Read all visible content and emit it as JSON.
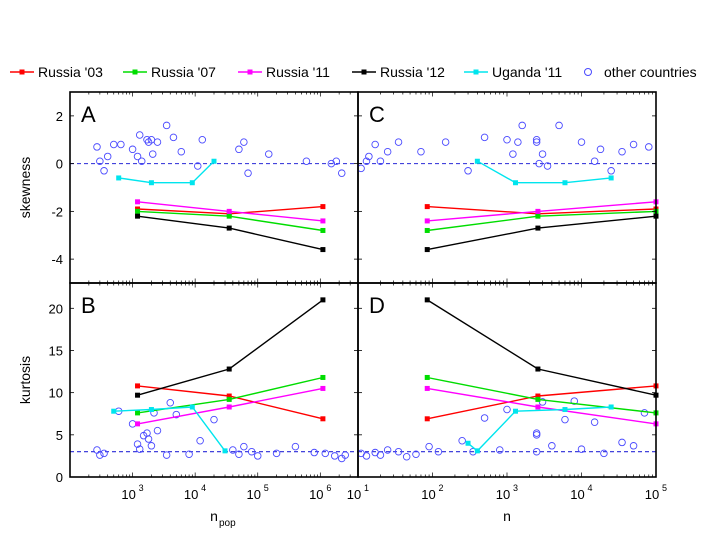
{
  "legend": [
    {
      "label": "Russia '03",
      "color": "#ff0000",
      "kind": "line"
    },
    {
      "label": "Russia '07",
      "color": "#00dd00",
      "kind": "line"
    },
    {
      "label": "Russia '11",
      "color": "#ff00ff",
      "kind": "line"
    },
    {
      "label": "Russia '12",
      "color": "#000000",
      "kind": "line"
    },
    {
      "label": "Uganda '11",
      "color": "#00e5ee",
      "kind": "line"
    },
    {
      "label": "other countries",
      "color": "#4a4aff",
      "kind": "circle"
    }
  ],
  "chart_data": [
    {
      "panel": "A",
      "type": "line",
      "xscale": "log",
      "xlim": [
        100,
        4000000
      ],
      "ylim": [
        -5,
        3
      ],
      "yticks": [
        -4,
        -2,
        0,
        2
      ],
      "ytick_labels": [
        "-4",
        "-2",
        "0",
        "2"
      ],
      "xticks": [
        1000,
        10000,
        100000,
        1000000
      ],
      "xtick_labels": [
        {
          "base": "10",
          "exp": "3"
        },
        {
          "base": "10",
          "exp": "4"
        },
        {
          "base": "10",
          "exp": "5"
        },
        {
          "base": "10",
          "exp": "6"
        }
      ],
      "ylabel": "skewness",
      "xlabel": "",
      "reference_y": 0,
      "series": [
        {
          "name": "Russia '03",
          "color": "#ff0000",
          "x": [
            1200,
            35000,
            1100000
          ],
          "y": [
            -1.9,
            -2.1,
            -1.8
          ]
        },
        {
          "name": "Russia '07",
          "color": "#00dd00",
          "x": [
            1200,
            35000,
            1100000
          ],
          "y": [
            -2.0,
            -2.2,
            -2.8
          ]
        },
        {
          "name": "Russia '11",
          "color": "#ff00ff",
          "x": [
            1200,
            35000,
            1100000
          ],
          "y": [
            -1.6,
            -2.0,
            -2.4
          ]
        },
        {
          "name": "Russia '12",
          "color": "#000000",
          "x": [
            1200,
            35000,
            1100000
          ],
          "y": [
            -2.2,
            -2.7,
            -3.6
          ]
        },
        {
          "name": "Uganda '11",
          "color": "#00e5ee",
          "x": [
            600,
            2000,
            9000,
            20000
          ],
          "y": [
            -0.6,
            -0.8,
            -0.8,
            0.1
          ]
        }
      ],
      "scatter": {
        "name": "other countries",
        "color": "#4a4aff",
        "x": [
          270,
          300,
          350,
          400,
          500,
          650,
          1000,
          1200,
          1300,
          1400,
          1700,
          1800,
          2000,
          2100,
          2500,
          3500,
          4500,
          6000,
          11000,
          13000,
          50000,
          60000,
          70000,
          150000,
          600000,
          1500000,
          1800000,
          2200000
        ],
        "y": [
          0.7,
          0.1,
          -0.3,
          0.3,
          0.8,
          0.8,
          0.6,
          0.3,
          1.2,
          0.1,
          1.0,
          0.9,
          1.0,
          0.4,
          0.9,
          1.6,
          1.1,
          0.5,
          -0.1,
          1.0,
          0.6,
          0.9,
          -0.4,
          0.4,
          0.1,
          0.0,
          0.1,
          -0.4
        ]
      }
    },
    {
      "panel": "B",
      "type": "line",
      "xscale": "log",
      "xlim": [
        100,
        4000000
      ],
      "ylim": [
        0,
        23
      ],
      "yticks": [
        0,
        5,
        10,
        15,
        20
      ],
      "ytick_labels": [
        "0",
        "5",
        "10",
        "15",
        "20"
      ],
      "xticks": [
        1000,
        10000,
        100000,
        1000000
      ],
      "xtick_labels": [
        {
          "base": "10",
          "exp": "3"
        },
        {
          "base": "10",
          "exp": "4"
        },
        {
          "base": "10",
          "exp": "5"
        },
        {
          "base": "10",
          "exp": "6"
        }
      ],
      "ylabel": "kurtosis",
      "xlabel": "n",
      "xlabel_sub": "pop",
      "reference_y": 3,
      "series": [
        {
          "name": "Russia '03",
          "color": "#ff0000",
          "x": [
            1200,
            35000,
            1100000
          ],
          "y": [
            10.8,
            9.6,
            6.9
          ]
        },
        {
          "name": "Russia '07",
          "color": "#00dd00",
          "x": [
            1200,
            35000,
            1100000
          ],
          "y": [
            7.6,
            9.2,
            11.8
          ]
        },
        {
          "name": "Russia '11",
          "color": "#ff00ff",
          "x": [
            1200,
            35000,
            1100000
          ],
          "y": [
            6.3,
            8.3,
            10.5
          ]
        },
        {
          "name": "Russia '12",
          "color": "#000000",
          "x": [
            1200,
            35000,
            1100000
          ],
          "y": [
            9.7,
            12.8,
            21.0
          ]
        },
        {
          "name": "Uganda '11",
          "color": "#00e5ee",
          "x": [
            500,
            2000,
            9000,
            30000
          ],
          "y": [
            7.8,
            8.0,
            8.3,
            3.1
          ]
        }
      ],
      "scatter": {
        "name": "other countries",
        "color": "#4a4aff",
        "x": [
          270,
          300,
          350,
          600,
          1000,
          1200,
          1300,
          1500,
          1700,
          1800,
          2000,
          2200,
          2500,
          3500,
          4000,
          5000,
          8000,
          12000,
          20000,
          40000,
          50000,
          60000,
          80000,
          100000,
          200000,
          400000,
          800000,
          1200000,
          1700000,
          2200000,
          2500000
        ],
        "y": [
          3.2,
          2.6,
          2.8,
          7.8,
          6.3,
          3.9,
          3.3,
          4.9,
          5.2,
          4.5,
          3.7,
          7.6,
          5.5,
          2.6,
          8.8,
          7.4,
          2.7,
          4.3,
          6.8,
          3.2,
          2.7,
          3.6,
          3.0,
          2.5,
          2.8,
          3.6,
          2.9,
          2.8,
          2.5,
          2.2,
          2.6
        ]
      }
    },
    {
      "panel": "C",
      "type": "line",
      "xscale": "log",
      "xlim": [
        10,
        100000
      ],
      "ylim": [
        -5,
        3
      ],
      "yticks": [
        -4,
        -2,
        0,
        2
      ],
      "ytick_labels": [
        "",
        "",
        "",
        ""
      ],
      "xticks": [
        10,
        100,
        1000,
        10000,
        100000
      ],
      "xtick_labels": [
        {
          "base": "10",
          "exp": "1"
        },
        {
          "base": "10",
          "exp": "2"
        },
        {
          "base": "10",
          "exp": "3"
        },
        {
          "base": "10",
          "exp": "4"
        },
        {
          "base": "10",
          "exp": "5"
        }
      ],
      "ylabel": "",
      "xlabel": "",
      "reference_y": 0,
      "series": [
        {
          "name": "Russia '03",
          "color": "#ff0000",
          "x": [
            85,
            2600,
            100000
          ],
          "y": [
            -1.8,
            -2.1,
            -1.9
          ]
        },
        {
          "name": "Russia '07",
          "color": "#00dd00",
          "x": [
            85,
            2600,
            100000
          ],
          "y": [
            -2.8,
            -2.2,
            -2.0
          ]
        },
        {
          "name": "Russia '11",
          "color": "#ff00ff",
          "x": [
            85,
            2600,
            100000
          ],
          "y": [
            -2.4,
            -2.0,
            -1.6
          ]
        },
        {
          "name": "Russia '12",
          "color": "#000000",
          "x": [
            85,
            2600,
            100000
          ],
          "y": [
            -3.6,
            -2.7,
            -2.2
          ]
        },
        {
          "name": "Uganda '11",
          "color": "#00e5ee",
          "x": [
            400,
            1300,
            6000,
            25000
          ],
          "y": [
            0.1,
            -0.8,
            -0.8,
            -0.6
          ]
        }
      ],
      "scatter": {
        "name": "other countries",
        "color": "#4a4aff",
        "x": [
          11,
          13,
          14,
          17,
          20,
          25,
          35,
          70,
          150,
          300,
          500,
          1000,
          1200,
          1400,
          1600,
          2500,
          2500,
          2700,
          3000,
          3500,
          5000,
          10000,
          15000,
          18000,
          25000,
          35000,
          50000,
          80000
        ],
        "y": [
          -0.2,
          0.1,
          0.3,
          0.8,
          0.1,
          0.5,
          0.9,
          0.5,
          0.9,
          -0.3,
          1.1,
          1.0,
          0.4,
          0.9,
          1.6,
          0.9,
          1.0,
          0.0,
          0.4,
          -0.1,
          1.6,
          0.9,
          0.1,
          0.6,
          -0.3,
          0.5,
          0.8,
          0.7
        ]
      }
    },
    {
      "panel": "D",
      "type": "line",
      "xscale": "log",
      "xlim": [
        10,
        100000
      ],
      "ylim": [
        0,
        23
      ],
      "yticks": [
        0,
        5,
        10,
        15,
        20
      ],
      "ytick_labels": [
        "",
        "",
        "",
        "",
        ""
      ],
      "xticks": [
        10,
        100,
        1000,
        10000,
        100000
      ],
      "xtick_labels": [
        {
          "base": "10",
          "exp": "1"
        },
        {
          "base": "10",
          "exp": "2"
        },
        {
          "base": "10",
          "exp": "3"
        },
        {
          "base": "10",
          "exp": "4"
        },
        {
          "base": "10",
          "exp": "5"
        }
      ],
      "ylabel": "",
      "xlabel": "n",
      "xlabel_sub": "",
      "reference_y": 3,
      "series": [
        {
          "name": "Russia '03",
          "color": "#ff0000",
          "x": [
            85,
            2600,
            100000
          ],
          "y": [
            6.9,
            9.6,
            10.8
          ]
        },
        {
          "name": "Russia '07",
          "color": "#00dd00",
          "x": [
            85,
            2600,
            100000
          ],
          "y": [
            11.8,
            9.2,
            7.6
          ]
        },
        {
          "name": "Russia '11",
          "color": "#ff00ff",
          "x": [
            85,
            2600,
            100000
          ],
          "y": [
            10.5,
            8.3,
            6.3
          ]
        },
        {
          "name": "Russia '12",
          "color": "#000000",
          "x": [
            85,
            2600,
            100000
          ],
          "y": [
            21.0,
            12.8,
            9.7
          ]
        },
        {
          "name": "Uganda '11",
          "color": "#00e5ee",
          "x": [
            300,
            400,
            1300,
            6000,
            25000
          ],
          "y": [
            4.0,
            3.1,
            7.8,
            8.0,
            8.3
          ]
        }
      ],
      "scatter": {
        "name": "other countries",
        "color": "#4a4aff",
        "x": [
          11,
          13,
          17,
          20,
          25,
          35,
          45,
          60,
          90,
          120,
          250,
          350,
          500,
          800,
          1000,
          2500,
          2500,
          2500,
          3000,
          4000,
          6000,
          8000,
          10000,
          15000,
          20000,
          35000,
          50000,
          70000
        ],
        "y": [
          2.8,
          2.5,
          2.9,
          2.6,
          3.2,
          3.0,
          2.4,
          2.7,
          3.6,
          3.0,
          4.3,
          3.0,
          7.0,
          3.2,
          8.0,
          5.0,
          5.2,
          3.0,
          8.9,
          3.7,
          6.8,
          9.0,
          3.3,
          6.5,
          2.8,
          4.1,
          3.7,
          7.6
        ]
      }
    }
  ]
}
